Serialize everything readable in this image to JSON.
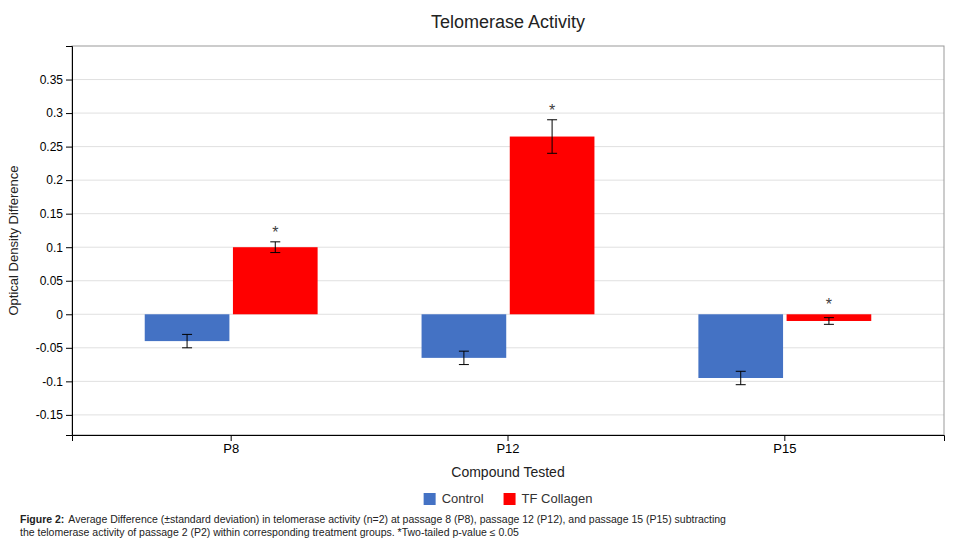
{
  "chart_data": {
    "type": "bar",
    "title": "Telomerase Activity",
    "xlabel": "Compound Tested",
    "ylabel": "Optical Density Difference",
    "categories": [
      "P8",
      "P12",
      "P15"
    ],
    "series": [
      {
        "name": "Control",
        "color": "#4472C4",
        "values": [
          -0.04,
          -0.065,
          -0.095
        ],
        "errors": [
          0.01,
          0.01,
          0.01
        ]
      },
      {
        "name": "TF Collagen",
        "color": "#FF0000",
        "values": [
          0.1,
          0.265,
          -0.01
        ],
        "errors": [
          0.008,
          0.025,
          0.005
        ]
      }
    ],
    "ylim": [
      -0.18,
      0.4
    ],
    "yticks": [
      -0.15,
      -0.1,
      -0.05,
      0,
      0.05,
      0.1,
      0.15,
      0.2,
      0.25,
      0.3,
      0.35
    ],
    "grid": true,
    "annotations": [
      {
        "text": "*",
        "category": "P8",
        "series": "TF Collagen"
      },
      {
        "text": "*",
        "category": "P12",
        "series": "TF Collagen"
      },
      {
        "text": "*",
        "category": "P15",
        "series": "TF Collagen"
      }
    ],
    "caption_label": "Figure 2:",
    "caption": [
      "Average Difference (±standard deviation) in telomerase activity (n=2) at passage 8 (P8), passage 12 (P12), and passage 15 (P15) subtracting",
      "the telomerase activity of passage 2 (P2) within corresponding treatment groups. *Two-tailed p-value ≤ 0.05"
    ]
  }
}
